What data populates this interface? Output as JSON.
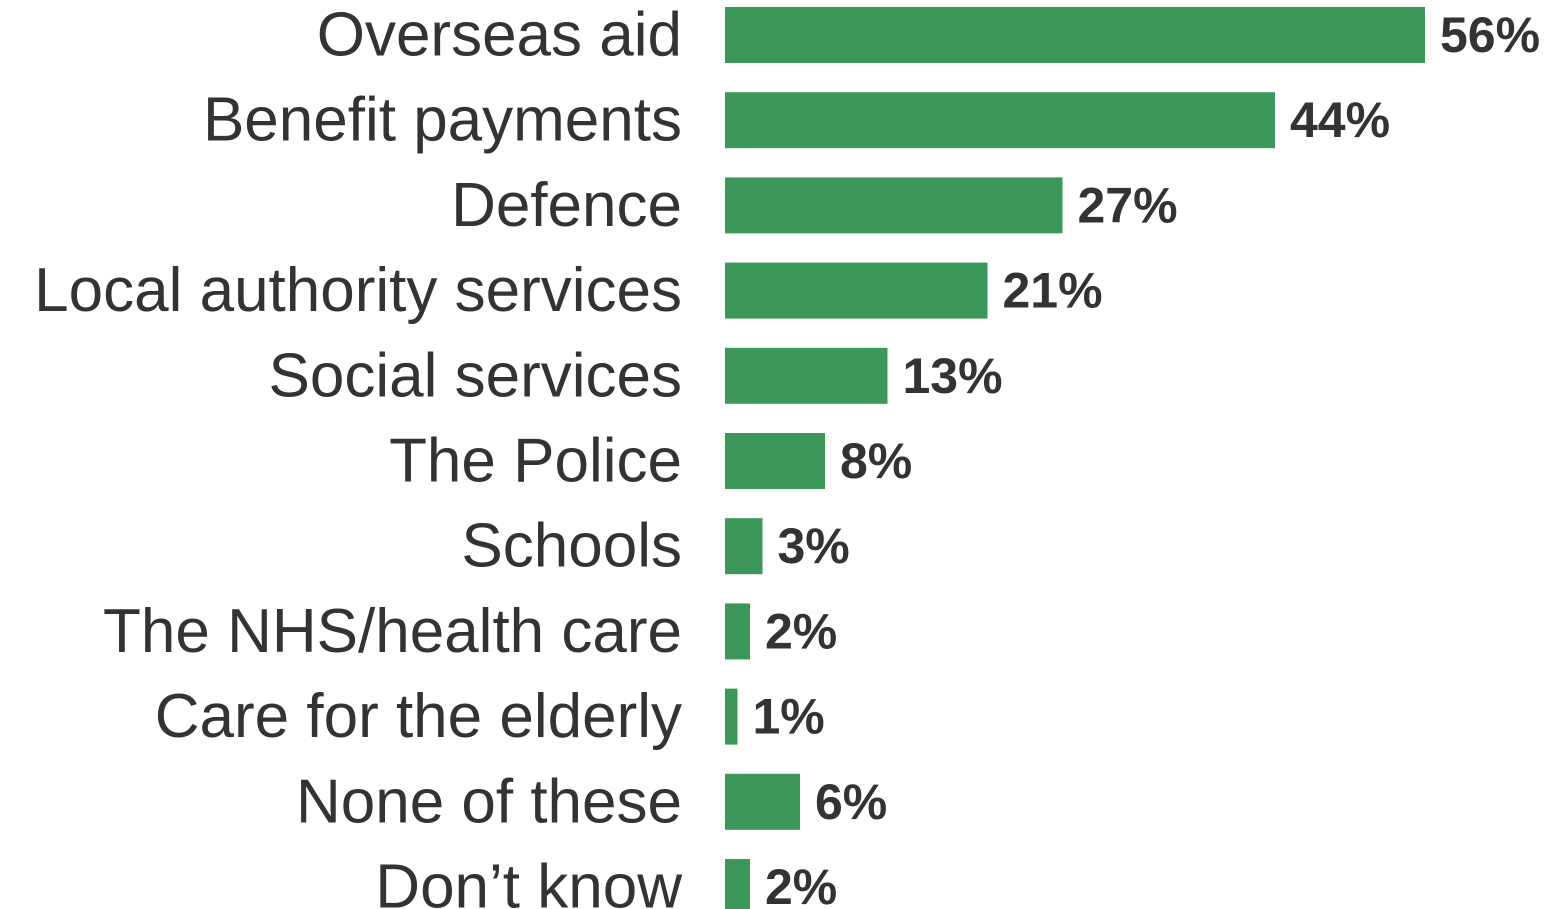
{
  "chart_data": {
    "type": "bar",
    "orientation": "horizontal",
    "categories": [
      "Overseas aid",
      "Benefit payments",
      "Defence",
      "Local authority services",
      "Social services",
      "The Police",
      "Schools",
      "The NHS/health care",
      "Care for the elderly",
      "None of these",
      "Don’t know"
    ],
    "values": [
      56,
      44,
      27,
      21,
      13,
      8,
      3,
      2,
      1,
      6,
      2
    ],
    "value_labels": [
      "56%",
      "44%",
      "27%",
      "21%",
      "13%",
      "8%",
      "3%",
      "2%",
      "1%",
      "6%",
      "2%"
    ],
    "unit": "%",
    "title": "",
    "xlabel": "",
    "ylabel": "",
    "grid": false,
    "legend": "none",
    "bar_color": "#3c9858",
    "text_color": "#333333"
  }
}
